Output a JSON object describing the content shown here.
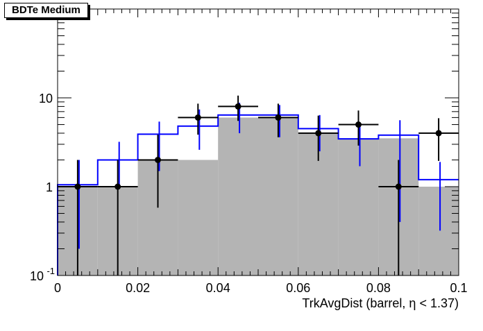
{
  "chart_data": {
    "type": "bar",
    "title": "BDTe Medium",
    "xlabel": "TrkAvgDist (barrel,  η < 1.37)",
    "ylabel": "",
    "xlim": [
      0,
      0.1
    ],
    "ylim": [
      0.1,
      100
    ],
    "yscale": "log",
    "grid": false,
    "x_ticks": [
      "0",
      "0.02",
      "0.04",
      "0.06",
      "0.08",
      "0.1"
    ],
    "y_ticks": [
      {
        "base": "10",
        "exp": "-1",
        "value": 0.1
      },
      {
        "base": "1",
        "exp": "",
        "value": 1
      },
      {
        "base": "10",
        "exp": "",
        "value": 10
      }
    ],
    "bin_edges": [
      0,
      0.01,
      0.02,
      0.03,
      0.04,
      0.05,
      0.06,
      0.07,
      0.08,
      0.09,
      0.1
    ],
    "series": [
      {
        "kind": "filled-histogram",
        "fill": "#b4b4b4",
        "values": [
          1.0,
          1.0,
          2.0,
          2.0,
          6.0,
          6.0,
          4.0,
          3.5,
          3.5,
          1.0
        ]
      },
      {
        "kind": "step-line",
        "color": "#0000ff",
        "values": [
          1.05,
          2.0,
          3.9,
          4.8,
          6.4,
          6.4,
          4.5,
          3.45,
          3.8,
          1.2
        ],
        "errors": [
          [
            0.2,
            2.0
          ],
          [
            1.0,
            3.2
          ],
          [
            1.5,
            5.4
          ],
          [
            2.6,
            7.4
          ],
          [
            4.0,
            8.8
          ],
          [
            3.6,
            8.3
          ],
          [
            2.5,
            6.4
          ],
          [
            1.7,
            5.3
          ],
          [
            0.4,
            5.6
          ],
          [
            0.32,
            1.9
          ]
        ]
      },
      {
        "kind": "data-points",
        "color": "#000000",
        "values": [
          1,
          1,
          2,
          6,
          8,
          6,
          4,
          5,
          1,
          4
        ],
        "errors": [
          [
            0.1,
            2.0
          ],
          [
            0.1,
            2.0
          ],
          [
            0.58,
            3.85
          ],
          [
            3.85,
            8.6
          ],
          [
            5.5,
            10.6
          ],
          [
            3.6,
            8.6
          ],
          [
            1.95,
            6.3
          ],
          [
            2.9,
            7.2
          ],
          [
            0.1,
            2.0
          ],
          [
            1.95,
            5.9
          ]
        ]
      }
    ]
  }
}
